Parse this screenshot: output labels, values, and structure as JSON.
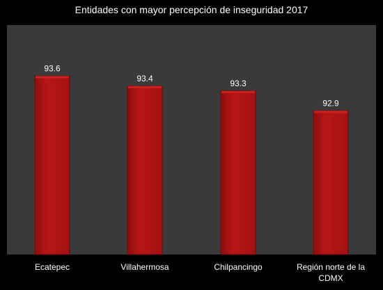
{
  "chart_data": {
    "type": "bar",
    "title": "Entidades con mayor percepción de inseguridad 2017",
    "categories": [
      "Ecatepec",
      "Villahermosa",
      "Chilpancingo",
      "Región norte de la CDMX"
    ],
    "category_lines": [
      [
        "Ecatepec"
      ],
      [
        "Villahermosa"
      ],
      [
        "Chilpancingo"
      ],
      [
        "Región norte de la",
        "CDMX"
      ]
    ],
    "values": [
      93.6,
      93.4,
      93.3,
      92.9
    ],
    "value_labels": [
      "93.6",
      "93.4",
      "93.3",
      "92.9"
    ],
    "xlabel": "",
    "ylabel": "",
    "ylim": [
      90.0,
      94.0
    ],
    "grid": false,
    "legend": "none",
    "colors": {
      "background": "#000000",
      "plot_area": "#3a3a3a",
      "bar": "#b01414",
      "bar_top": "#d02020",
      "bar_edge": "#6a0a0a",
      "text": "#ffffff"
    }
  }
}
